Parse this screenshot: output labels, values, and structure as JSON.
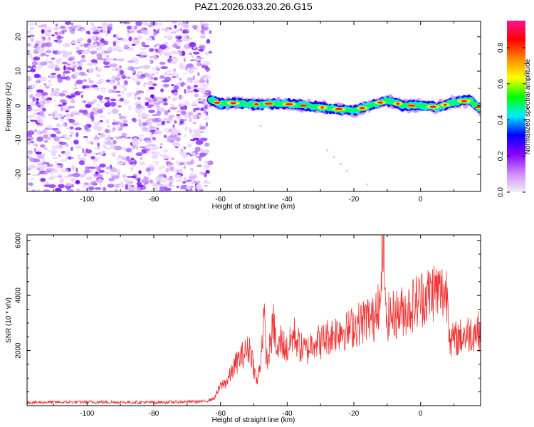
{
  "title": "PAZ1.2026.033.20.26.G15",
  "chart_data": [
    {
      "type": "heatmap",
      "name": "spectrogram",
      "xlabel": "Height of straight line (km)",
      "ylabel": "Frequency (Hz)",
      "xlim": [
        -118,
        18
      ],
      "ylim": [
        -25,
        24.5
      ],
      "xticks": [
        -100,
        -80,
        -60,
        -40,
        -20,
        0
      ],
      "yticks": [
        -20,
        -10,
        0,
        10,
        20
      ],
      "noise_region_x": [
        -118,
        -63
      ],
      "ridge": {
        "x": [
          -63,
          -60,
          -55,
          -50,
          -45,
          -40,
          -35,
          -30,
          -25,
          -20,
          -15,
          -10,
          -5,
          0,
          5,
          10,
          15,
          18
        ],
        "freq": [
          1.5,
          0.5,
          0.8,
          0.3,
          0.6,
          0.4,
          0,
          -0.5,
          -1,
          -1.5,
          0,
          1.5,
          0,
          0,
          -0.5,
          1,
          1.5,
          -1
        ]
      },
      "colorbar": {
        "label": "Normalized spectral amplitude",
        "ticks": [
          0.0,
          0.2,
          0.4,
          0.6,
          0.8
        ],
        "range": [
          0,
          0.95
        ],
        "colors": [
          "#f2f2f2",
          "#cc88ff",
          "#8800ff",
          "#0000ff",
          "#00eeff",
          "#00ff00",
          "#ffff00",
          "#ff8800",
          "#ff0000",
          "#ff1493"
        ]
      }
    },
    {
      "type": "line",
      "name": "snr",
      "xlabel": "Height of straight line (km)",
      "ylabel": "SNR (10 * v/v)",
      "xlim": [
        -118,
        18
      ],
      "ylim": [
        0,
        6200
      ],
      "xticks": [
        -100,
        -80,
        -60,
        -40,
        -20,
        0
      ],
      "yticks": [
        2000,
        4000,
        6000
      ],
      "color": "#ee3333",
      "series": [
        {
          "name": "SNR",
          "x": [
            -118,
            -100,
            -80,
            -65,
            -62,
            -60,
            -58,
            -55,
            -53,
            -51,
            -50,
            -49,
            -48,
            -47,
            -46,
            -45,
            -44,
            -43,
            -42,
            -40,
            -38,
            -36,
            -34,
            -32,
            -30,
            -28,
            -26,
            -24,
            -22,
            -20,
            -18,
            -16,
            -14,
            -13,
            -12,
            -11.5,
            -11,
            -10.5,
            -10,
            -8,
            -6,
            -4,
            -2,
            0,
            2,
            4,
            6,
            8,
            9,
            10,
            12,
            14,
            16,
            18
          ],
          "y": [
            120,
            130,
            120,
            150,
            250,
            700,
            900,
            1600,
            1900,
            2100,
            1400,
            800,
            1600,
            3200,
            1500,
            2300,
            3000,
            1800,
            2400,
            2000,
            2600,
            2100,
            2000,
            2400,
            2300,
            2500,
            2600,
            2800,
            2700,
            2900,
            3000,
            3200,
            3100,
            4100,
            3300,
            5800,
            6100,
            3000,
            3200,
            3300,
            3400,
            3500,
            3700,
            3900,
            4000,
            4200,
            4100,
            4100,
            2300,
            2400,
            2500,
            2600,
            2700,
            2700
          ]
        }
      ]
    }
  ]
}
